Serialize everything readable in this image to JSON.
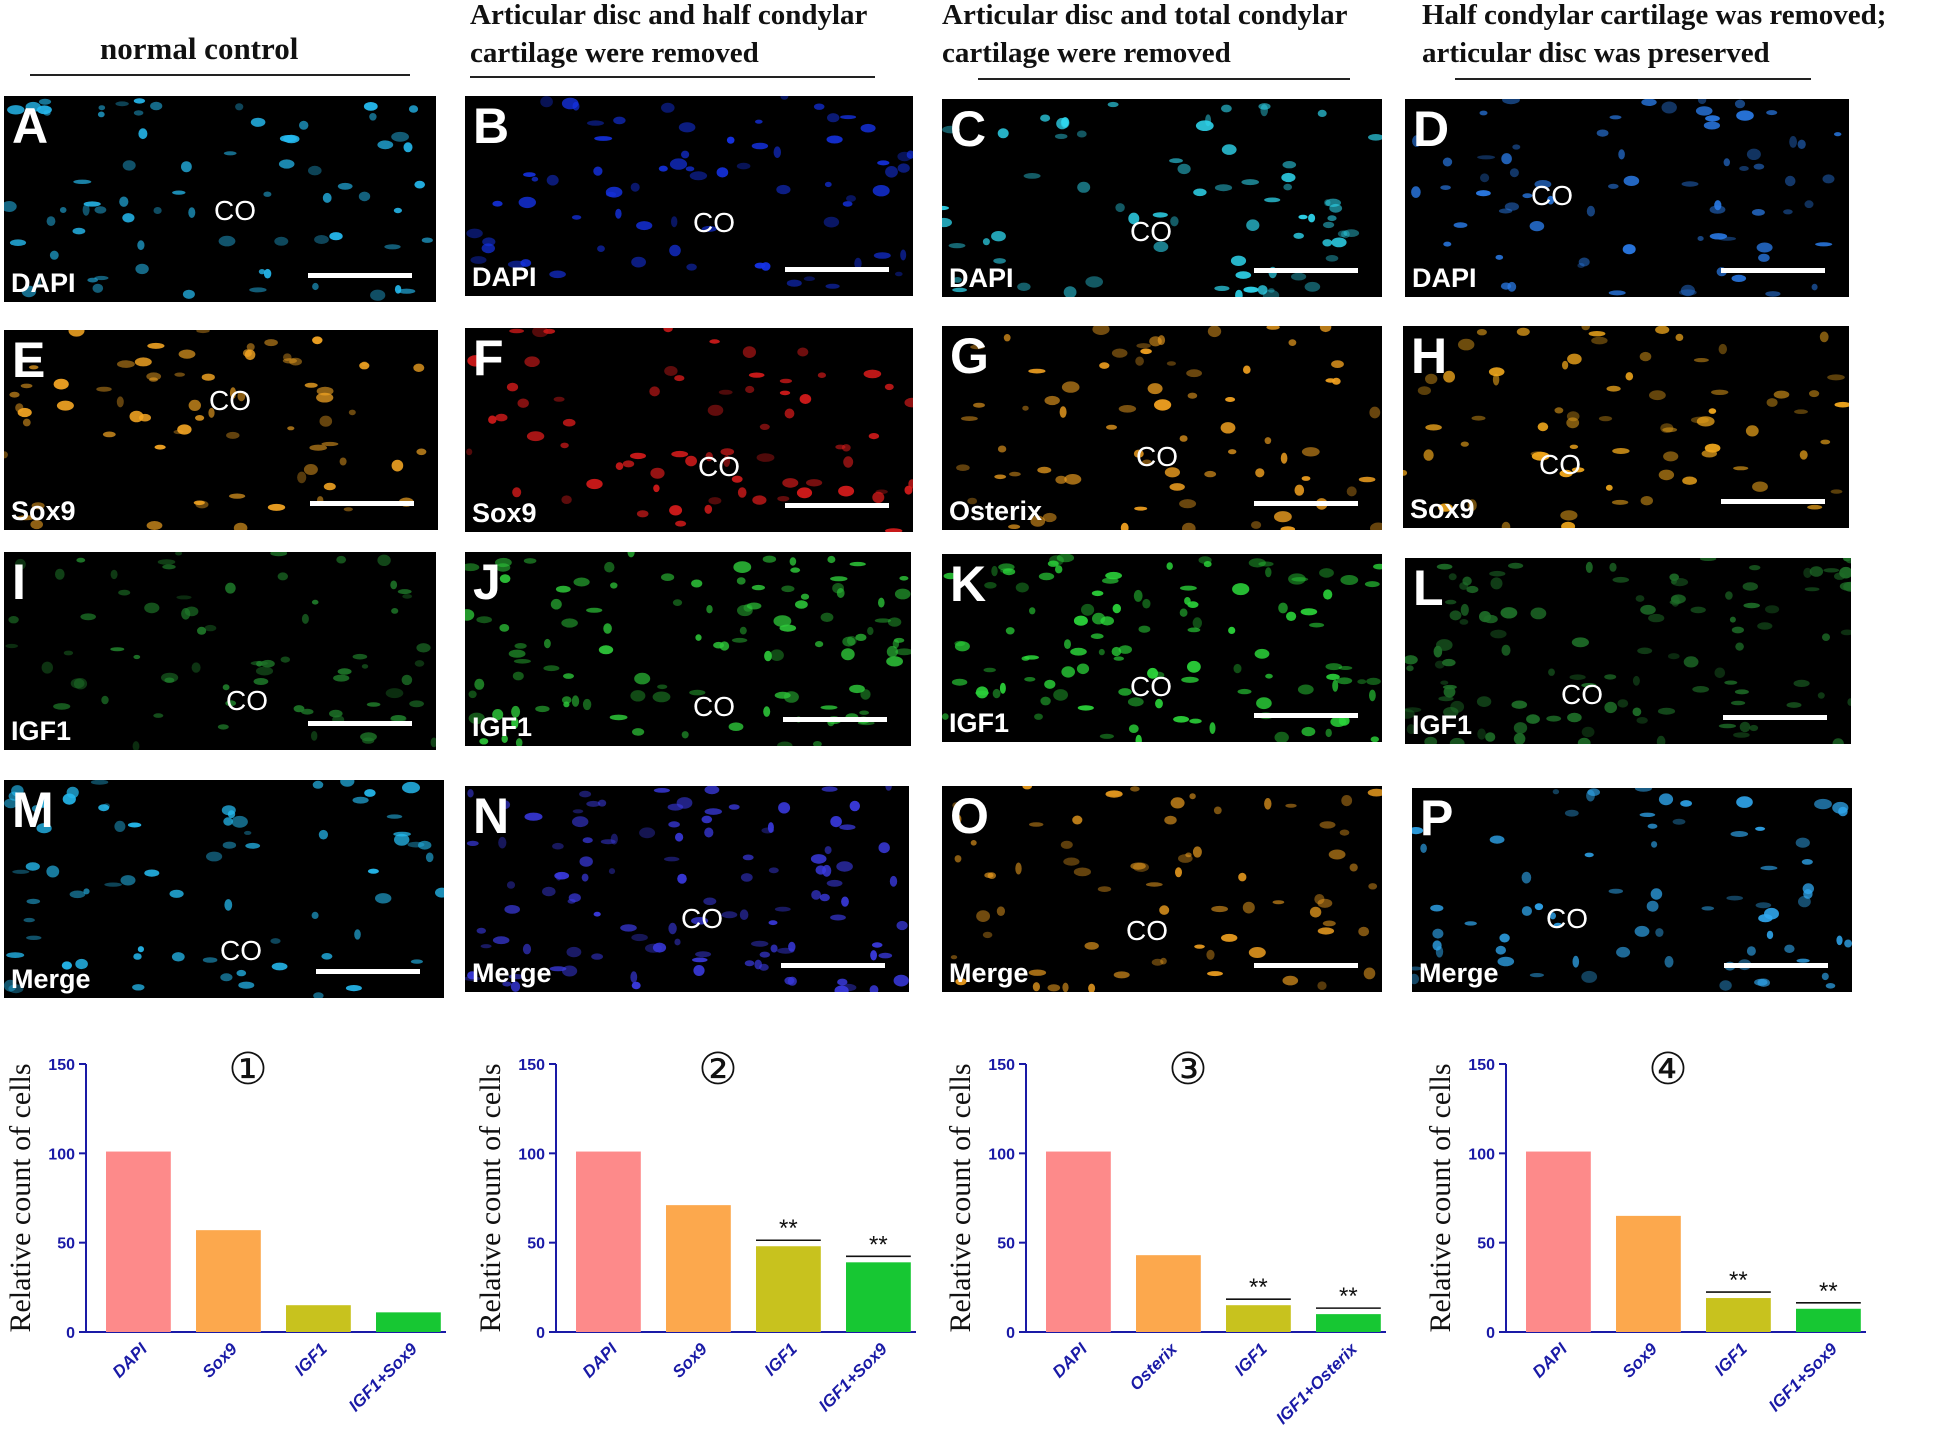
{
  "columns": [
    {
      "heading_line1": "normal control",
      "heading_line2": ""
    },
    {
      "heading_line1": "Articular disc and half condylar",
      "heading_line2": "cartilage were removed"
    },
    {
      "heading_line1": "Articular disc and total condylar",
      "heading_line2": "cartilage were removed"
    },
    {
      "heading_line1": "Half condylar cartilage was removed;",
      "heading_line2": "articular disc was preserved"
    }
  ],
  "panels": [
    {
      "letter": "A",
      "stain": "DAPI",
      "region": "CO",
      "color": "#25b9ee"
    },
    {
      "letter": "B",
      "stain": "DAPI",
      "region": "CO",
      "color": "#1533e8"
    },
    {
      "letter": "C",
      "stain": "DAPI",
      "region": "CO",
      "color": "#2fd8f0"
    },
    {
      "letter": "D",
      "stain": "DAPI",
      "region": "CO",
      "color": "#2a7be8"
    },
    {
      "letter": "E",
      "stain": "Sox9",
      "region": "CO",
      "color": "#f5a623"
    },
    {
      "letter": "F",
      "stain": "Sox9",
      "region": "CO",
      "color": "#d81b1b"
    },
    {
      "letter": "G",
      "stain": "Osterix",
      "region": "CO",
      "color": "#f0a020"
    },
    {
      "letter": "H",
      "stain": "Sox9",
      "region": "CO",
      "color": "#f2a81c"
    },
    {
      "letter": "I",
      "stain": "IGF1",
      "region": "CO",
      "color": "#1f7a2a"
    },
    {
      "letter": "J",
      "stain": "IGF1",
      "region": "CO",
      "color": "#2ec83a"
    },
    {
      "letter": "K",
      "stain": "IGF1",
      "region": "CO",
      "color": "#2bd43a"
    },
    {
      "letter": "L",
      "stain": "IGF1",
      "region": "CO",
      "color": "#1e6e28"
    },
    {
      "letter": "M",
      "stain": "Merge",
      "region": "CO",
      "color": "#25b9ee"
    },
    {
      "letter": "N",
      "stain": "Merge",
      "region": "CO",
      "color": "#3a3ae0"
    },
    {
      "letter": "O",
      "stain": "Merge",
      "region": "CO",
      "color": "#f0a020"
    },
    {
      "letter": "P",
      "stain": "Merge",
      "region": "CO",
      "color": "#30a8f0"
    }
  ],
  "charts_text": {
    "ylabel": "Relative count of cells",
    "labels": [
      "①",
      "②",
      "③",
      "④"
    ]
  },
  "chart_data": [
    {
      "type": "bar",
      "title": "①",
      "ylabel": "Relative count of cells",
      "ylim": [
        0,
        150
      ],
      "yticks": [
        0,
        50,
        100,
        150
      ],
      "categories": [
        "DAPI",
        "Sox9",
        "IGF1",
        "IGF1+Sox9"
      ],
      "values": [
        101,
        57,
        15,
        11
      ],
      "significance": [
        "",
        "",
        "",
        ""
      ],
      "colors": [
        "#fd8a8a",
        "#fca84d",
        "#c8c21e",
        "#17c733"
      ]
    },
    {
      "type": "bar",
      "title": "②",
      "ylabel": "Relative count of cells",
      "ylim": [
        0,
        150
      ],
      "yticks": [
        0,
        50,
        100,
        150
      ],
      "categories": [
        "DAPI",
        "Sox9",
        "IGF1",
        "IGF1+Sox9"
      ],
      "values": [
        101,
        71,
        48,
        39
      ],
      "significance": [
        "",
        "",
        "**",
        "**"
      ],
      "colors": [
        "#fd8a8a",
        "#fca84d",
        "#c8c21e",
        "#17c733"
      ]
    },
    {
      "type": "bar",
      "title": "③",
      "ylabel": "Relative count of cells",
      "ylim": [
        0,
        150
      ],
      "yticks": [
        0,
        50,
        100,
        150
      ],
      "categories": [
        "DAPI",
        "Osterix",
        "IGF1",
        "IGF1+Osterix"
      ],
      "values": [
        101,
        43,
        15,
        10
      ],
      "significance": [
        "",
        "",
        "**",
        "**"
      ],
      "colors": [
        "#fd8a8a",
        "#fca84d",
        "#c8c21e",
        "#17c733"
      ]
    },
    {
      "type": "bar",
      "title": "④",
      "ylabel": "Relative count of cells",
      "ylim": [
        0,
        150
      ],
      "yticks": [
        0,
        50,
        100,
        150
      ],
      "categories": [
        "DAPI",
        "Sox9",
        "IGF1",
        "IGF1+Sox9"
      ],
      "values": [
        101,
        65,
        19,
        13
      ],
      "significance": [
        "",
        "",
        "**",
        "**"
      ],
      "colors": [
        "#fd8a8a",
        "#fca84d",
        "#c8c21e",
        "#17c733"
      ]
    }
  ]
}
